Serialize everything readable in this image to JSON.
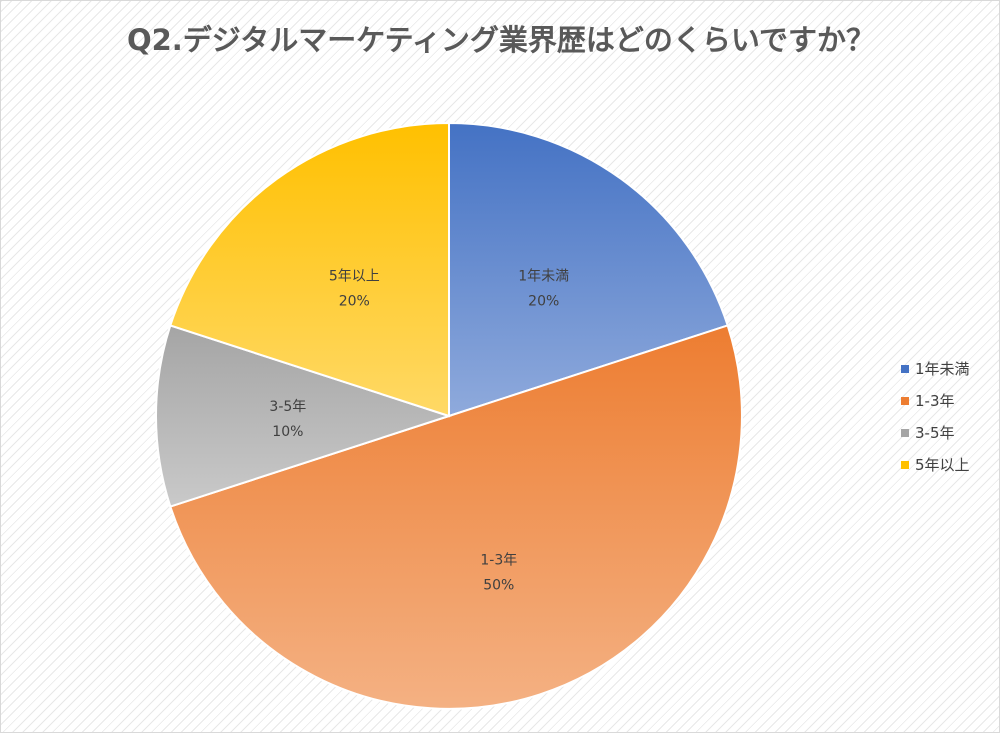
{
  "chart_data": {
    "type": "pie",
    "title": "Q2.デジタルマーケティング業界歴はどのくらいですか？",
    "categories": [
      "1年未満",
      "1-3年",
      "3-5年",
      "5年以上"
    ],
    "values": [
      20,
      50,
      10,
      20
    ],
    "value_labels": [
      "20%",
      "50%",
      "10%",
      "20%"
    ],
    "colors": [
      "#4472C4",
      "#ED7D31",
      "#A5A5A5",
      "#FFC000"
    ],
    "start_angle": "12 o'clock",
    "direction": "clockwise",
    "legend_position": "right"
  }
}
